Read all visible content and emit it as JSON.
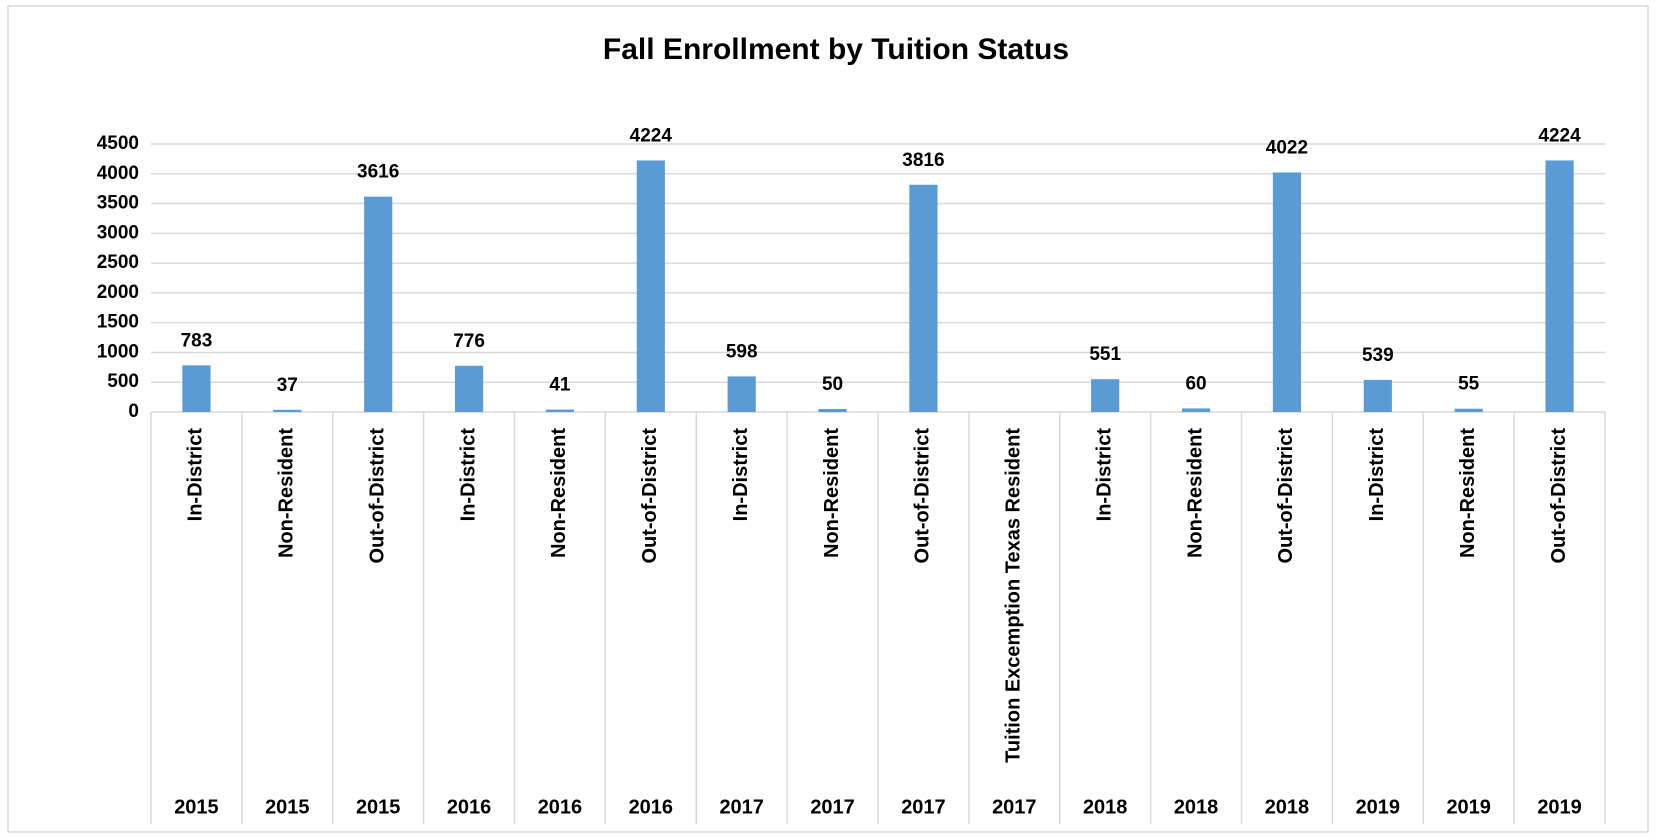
{
  "chart_data": {
    "type": "bar",
    "title": "Fall Enrollment by Tuition Status",
    "categories": [
      "In-District",
      "Non-Resident",
      "Out-of-District",
      "In-District",
      "Non-Resident",
      "Out-of-District",
      "In-District",
      "Non-Resident",
      "Out-of-District",
      "Tuition Excemption Texas Resident",
      "In-District",
      "Non-Resident",
      "Out-of-District",
      "In-District",
      "Non-Resident",
      "Out-of-District"
    ],
    "category_groups": [
      "2015",
      "2015",
      "2015",
      "2016",
      "2016",
      "2016",
      "2017",
      "2017",
      "2017",
      "2017",
      "2018",
      "2018",
      "2018",
      "2019",
      "2019",
      "2019"
    ],
    "values": [
      783,
      37,
      3616,
      776,
      41,
      4224,
      598,
      50,
      3816,
      null,
      551,
      60,
      4022,
      539,
      55,
      4224
    ],
    "color": "#5b9bd5",
    "ylim": [
      0,
      4500
    ],
    "yticks": [
      0,
      500,
      1000,
      1500,
      2000,
      2500,
      3000,
      3500,
      4000,
      4500
    ],
    "grid": true
  }
}
